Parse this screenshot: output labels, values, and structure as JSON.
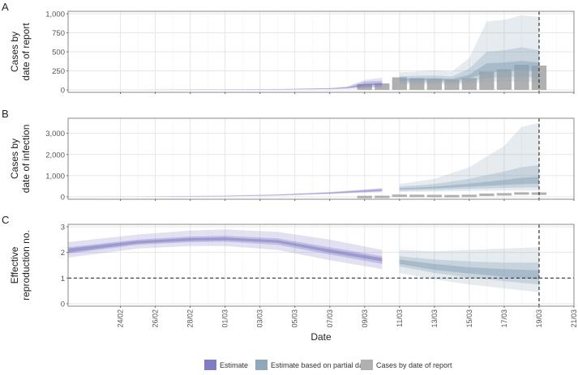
{
  "chart_data": {
    "type": "area",
    "xlabel": "Date",
    "x_ticks": [
      "24/02",
      "26/02",
      "28/02",
      "01/03",
      "03/03",
      "05/03",
      "07/03",
      "09/03",
      "11/03",
      "13/03",
      "15/03",
      "17/03",
      "19/03",
      "21/03"
    ],
    "date_range": [
      "2020-02-21",
      "2020-03-21"
    ],
    "partial_from": "2020-03-10",
    "report_date": "2020-03-19",
    "colors": {
      "estimate": "#7a76c2",
      "partial": "#8aa3b8",
      "report_bars": "#b0b0b0",
      "panel_border": "#888888",
      "grid": "#e6e6e6"
    },
    "panels": [
      {
        "letter": "A",
        "ylabel": [
          "Cases by",
          "date of report"
        ],
        "yticks": [
          "0",
          "250",
          "500",
          "750",
          "1,000"
        ],
        "ylim": [
          0,
          1000
        ],
        "ref_line": null,
        "series": {
          "estimate": [
            [
              "2020-02-21",
              0,
              0,
              0,
              0,
              0,
              0
            ],
            [
              "2020-02-25",
              0,
              0,
              0,
              0,
              0,
              0
            ],
            [
              "2020-03-01",
              6,
              4,
              3,
              2,
              0,
              0
            ],
            [
              "2020-03-04",
              12,
              10,
              8,
              6,
              4,
              2
            ],
            [
              "2020-03-07",
              25,
              22,
              18,
              15,
              12,
              8
            ],
            [
              "2020-03-08",
              45,
              38,
              30,
              25,
              20,
              14
            ],
            [
              "2020-03-09",
              130,
              110,
              80,
              60,
              40,
              25
            ],
            [
              "2020-03-10",
              160,
              120,
              90,
              70,
              50,
              30
            ]
          ],
          "partial": [
            [
              "2020-03-11",
              230,
              180,
              150,
              120,
              95,
              70
            ],
            [
              "2020-03-12",
              240,
              185,
              150,
              120,
              95,
              70
            ],
            [
              "2020-03-13",
              260,
              190,
              155,
              125,
              100,
              72
            ],
            [
              "2020-03-14",
              240,
              175,
              145,
              115,
              95,
              70
            ],
            [
              "2020-03-15",
              420,
              280,
              200,
              150,
              110,
              80
            ],
            [
              "2020-03-16",
              900,
              500,
              350,
              230,
              160,
              110
            ],
            [
              "2020-03-17",
              920,
              520,
              360,
              240,
              170,
              110
            ],
            [
              "2020-03-18",
              980,
              560,
              380,
              260,
              175,
              110
            ],
            [
              "2020-03-19",
              960,
              520,
              360,
              240,
              160,
              100
            ]
          ],
          "bars": [
            [
              "2020-03-09",
              75
            ],
            [
              "2020-03-10",
              85
            ],
            [
              "2020-03-11",
              165
            ],
            [
              "2020-03-12",
              155
            ],
            [
              "2020-03-13",
              145
            ],
            [
              "2020-03-14",
              135
            ],
            [
              "2020-03-15",
              155
            ],
            [
              "2020-03-16",
              240
            ],
            [
              "2020-03-17",
              270
            ],
            [
              "2020-03-18",
              330
            ],
            [
              "2020-03-19",
              320
            ]
          ]
        }
      },
      {
        "letter": "B",
        "ylabel": [
          "Cases by",
          "date of infection"
        ],
        "yticks": [
          "0",
          "1,000",
          "2,000",
          "3,000"
        ],
        "ylim": [
          0,
          3600
        ],
        "ref_line": null,
        "series": {
          "estimate": [
            [
              "2020-02-21",
              0,
              0,
              0,
              0,
              0,
              0
            ],
            [
              "2020-02-25",
              15,
              10,
              8,
              6,
              4,
              2
            ],
            [
              "2020-03-01",
              60,
              50,
              40,
              30,
              25,
              18
            ],
            [
              "2020-03-04",
              120,
              105,
              90,
              75,
              65,
              55
            ],
            [
              "2020-03-07",
              230,
              210,
              190,
              170,
              150,
              130
            ],
            [
              "2020-03-10",
              420,
              380,
              340,
              300,
              260,
              220
            ]
          ],
          "partial": [
            [
              "2020-03-11",
              600,
              480,
              400,
              340,
              280,
              230
            ],
            [
              "2020-03-13",
              850,
              600,
              480,
              400,
              320,
              250
            ],
            [
              "2020-03-15",
              1400,
              850,
              620,
              480,
              380,
              280
            ],
            [
              "2020-03-17",
              2400,
              1200,
              800,
              560,
              420,
              300
            ],
            [
              "2020-03-18",
              3300,
              1400,
              900,
              600,
              440,
              300
            ],
            [
              "2020-03-19",
              3500,
              1500,
              950,
              620,
              440,
              300
            ]
          ],
          "bars": [
            [
              "2020-03-09",
              75
            ],
            [
              "2020-03-10",
              85
            ],
            [
              "2020-03-11",
              165
            ],
            [
              "2020-03-12",
              155
            ],
            [
              "2020-03-13",
              145
            ],
            [
              "2020-03-14",
              135
            ],
            [
              "2020-03-15",
              155
            ],
            [
              "2020-03-16",
              240
            ],
            [
              "2020-03-17",
              270
            ],
            [
              "2020-03-18",
              330
            ],
            [
              "2020-03-19",
              320
            ]
          ]
        }
      },
      {
        "letter": "C",
        "ylabel": [
          "Effective",
          "reproduction no."
        ],
        "yticks": [
          "0",
          "1",
          "2",
          "3"
        ],
        "ylim": [
          0,
          3
        ],
        "ref_line": 1,
        "series": {
          "estimate": [
            [
              "2020-02-21",
              2.4,
              2.2,
              2.15,
              2.0,
              1.95,
              1.8
            ],
            [
              "2020-02-25",
              2.7,
              2.5,
              2.45,
              2.35,
              2.3,
              2.15
            ],
            [
              "2020-02-28",
              2.85,
              2.62,
              2.56,
              2.46,
              2.4,
              2.25
            ],
            [
              "2020-03-01",
              2.9,
              2.65,
              2.58,
              2.48,
              2.42,
              2.25
            ],
            [
              "2020-03-04",
              2.8,
              2.55,
              2.48,
              2.38,
              2.3,
              2.1
            ],
            [
              "2020-03-07",
              2.5,
              2.2,
              2.12,
              2.0,
              1.92,
              1.7
            ],
            [
              "2020-03-10",
              2.1,
              1.85,
              1.78,
              1.65,
              1.55,
              1.35
            ]
          ],
          "partial": [
            [
              "2020-03-11",
              2.1,
              1.85,
              1.72,
              1.55,
              1.45,
              1.2
            ],
            [
              "2020-03-13",
              2.05,
              1.72,
              1.55,
              1.32,
              1.2,
              0.95
            ],
            [
              "2020-03-15",
              2.1,
              1.65,
              1.42,
              1.18,
              1.02,
              0.75
            ],
            [
              "2020-03-17",
              2.15,
              1.6,
              1.35,
              1.05,
              0.88,
              0.6
            ],
            [
              "2020-03-19",
              2.2,
              1.6,
              1.3,
              0.95,
              0.75,
              0.45
            ]
          ],
          "bars": []
        }
      }
    ],
    "legend": [
      {
        "key": "estimate",
        "label": "Estimate"
      },
      {
        "key": "partial",
        "label": "Estimate based on partial data"
      },
      {
        "key": "report_bars",
        "label": "Cases by date of report"
      }
    ]
  }
}
